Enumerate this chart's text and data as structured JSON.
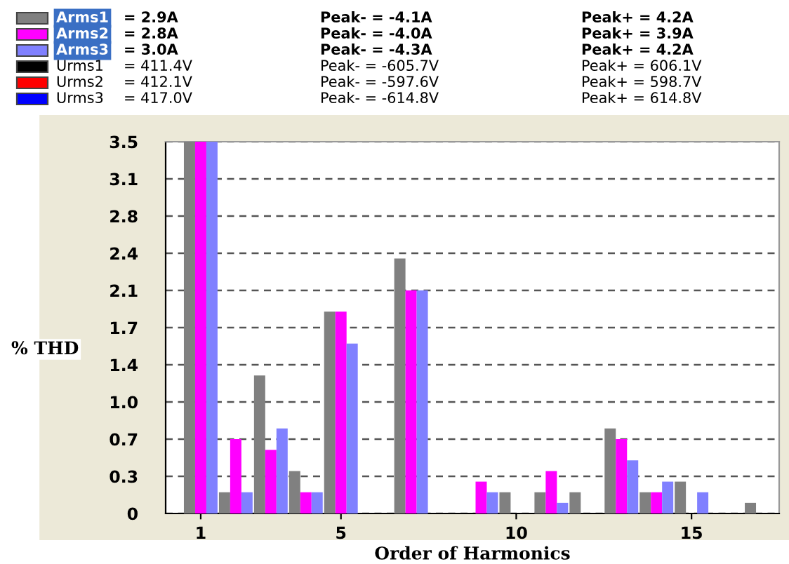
{
  "chart_data": {
    "type": "bar",
    "xlabel": "Order of Harmonics",
    "ylabel": "% THD",
    "categories": [
      "1",
      null,
      null,
      null,
      "5",
      null,
      null,
      null,
      null,
      "10",
      null,
      null,
      null,
      null,
      "15",
      null,
      null
    ],
    "series": [
      {
        "name": "Arms1",
        "color": "#808080",
        "values": [
          3.5,
          0.2,
          1.3,
          0.4,
          1.9,
          0,
          2.4,
          0,
          0,
          0.2,
          0.2,
          0.2,
          0.8,
          0.2,
          0.3,
          0,
          0.1
        ]
      },
      {
        "name": "Arms2",
        "color": "#ff00ff",
        "values": [
          3.5,
          0.7,
          0.6,
          0.2,
          1.9,
          0,
          2.1,
          0,
          0.3,
          0,
          0.4,
          0,
          0.7,
          0.2,
          0,
          0,
          0
        ]
      },
      {
        "name": "Arms3",
        "color": "#8080ff",
        "values": [
          3.5,
          0.2,
          0.8,
          0.2,
          1.6,
          0,
          2.1,
          0,
          0.2,
          0,
          0.1,
          0,
          0.5,
          0.3,
          0.2,
          0,
          0
        ]
      },
      {
        "name": "Urms1",
        "color": "#000000",
        "values": [
          null,
          null,
          null,
          null,
          null,
          null,
          null,
          null,
          null,
          null,
          null,
          null,
          null,
          null,
          null,
          null,
          null
        ]
      },
      {
        "name": "Urms2",
        "color": "#ff0000",
        "values": [
          null,
          null,
          null,
          null,
          null,
          null,
          null,
          null,
          null,
          null,
          null,
          null,
          null,
          null,
          null,
          null,
          null
        ]
      },
      {
        "name": "Urms3",
        "color": "#0000ff",
        "values": [
          null,
          null,
          null,
          null,
          null,
          null,
          null,
          null,
          null,
          null,
          null,
          null,
          null,
          null,
          null,
          null,
          null
        ]
      }
    ],
    "annotations": [
      "= 2.9A",
      "Peak- = -4.1A",
      "Peak+ = 4.2A",
      "= 2.8A",
      "Peak- = -4.0A",
      "Peak+ = 3.9A",
      "= 3.0A",
      "Peak- = -4.3A",
      "Peak+ = 4.2A",
      "= 411.4V",
      "Peak- = -605.7V",
      "Peak+ = 606.1V",
      "= 412.1V",
      "Peak- = -597.6V",
      "Peak+ = 598.7V",
      "= 417.0V",
      "Peak- = -614.8V",
      "Peak+ = 614.8V"
    ],
    "ylim": [
      0,
      3.5
    ],
    "yticks": [
      0,
      {
        "value": 0.35,
        "label": "0.3"
      },
      {
        "value": 0.7,
        "label": "0.7"
      },
      {
        "value": 1.05,
        "label": "1.0"
      },
      {
        "value": 1.4,
        "label": "1.4"
      },
      {
        "value": 1.75,
        "label": "1.7"
      },
      {
        "value": 2.1,
        "label": "2.1"
      },
      {
        "value": 2.45,
        "label": "2.4"
      },
      {
        "value": 2.8,
        "label": "2.8"
      },
      {
        "value": 3.15,
        "label": "3.1"
      },
      {
        "value": 3.5,
        "label": "3.5"
      }
    ],
    "grid": "y",
    "legend": "top"
  }
}
